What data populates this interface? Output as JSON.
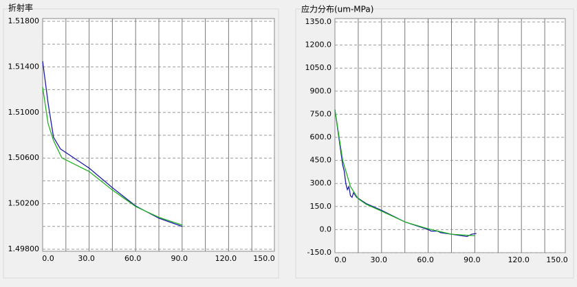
{
  "chart_data": [
    {
      "type": "line",
      "title": "折射率",
      "xlim": [
        0,
        150
      ],
      "xticks": [
        {
          "value": 0,
          "label": "0.0"
        },
        {
          "value": 30,
          "label": "30.0"
        },
        {
          "value": 60,
          "label": "60.0"
        },
        {
          "value": 90,
          "label": "90.0"
        },
        {
          "value": 120,
          "label": "120.0"
        },
        {
          "value": 150,
          "label": "150.0"
        }
      ],
      "x_minor_ticks": [
        15,
        45,
        75,
        105,
        135
      ],
      "ylim": [
        1.498,
        1.518
      ],
      "yticks": [
        {
          "value": 1.498,
          "label": "1.49800"
        },
        {
          "value": 1.502,
          "label": "1.50200"
        },
        {
          "value": 1.506,
          "label": "1.50600"
        },
        {
          "value": 1.51,
          "label": "1.51000"
        },
        {
          "value": 1.514,
          "label": "1.51400"
        },
        {
          "value": 1.518,
          "label": "1.51800"
        }
      ],
      "y_minor_ticks": [
        1.5,
        1.504,
        1.508,
        1.512,
        1.516
      ],
      "grid": true,
      "series": [
        {
          "color": "#1a1aa8",
          "x": [
            0,
            3.5,
            7,
            11.5,
            30,
            45,
            60,
            75,
            90
          ],
          "values": [
            1.5145,
            1.51083,
            1.50783,
            1.5068,
            1.50512,
            1.5034,
            1.5018,
            1.50072,
            1.5
          ]
        },
        {
          "color": "#20b020",
          "x": [
            0,
            3.5,
            7,
            12.4,
            30,
            45,
            60,
            75,
            90
          ],
          "values": [
            1.51222,
            1.50903,
            1.50753,
            1.50602,
            1.50482,
            1.5032,
            1.50175,
            1.5008,
            1.50012
          ]
        }
      ]
    },
    {
      "type": "line",
      "title": "应力分布(um-MPa)",
      "xlim": [
        0,
        150
      ],
      "xticks": [
        {
          "value": 0,
          "label": "0.0"
        },
        {
          "value": 30,
          "label": "30.0"
        },
        {
          "value": 60,
          "label": "60.0"
        },
        {
          "value": 90,
          "label": "90.0"
        },
        {
          "value": 120,
          "label": "120.0"
        },
        {
          "value": 150,
          "label": "150.0"
        }
      ],
      "x_minor_ticks": [
        15,
        45,
        75,
        105,
        135
      ],
      "ylim": [
        -150,
        1350
      ],
      "yticks": [
        {
          "value": -150,
          "label": "-150.0"
        },
        {
          "value": 0,
          "label": "0.0"
        },
        {
          "value": 150,
          "label": "150.0"
        },
        {
          "value": 300,
          "label": "300.0"
        },
        {
          "value": 450,
          "label": "450.0"
        },
        {
          "value": 600,
          "label": "600.0"
        },
        {
          "value": 750,
          "label": "750.0"
        },
        {
          "value": 900,
          "label": "900.0"
        },
        {
          "value": 1050,
          "label": "1050.0"
        },
        {
          "value": 1200,
          "label": "1200.0"
        },
        {
          "value": 1350,
          "label": "1350.0"
        }
      ],
      "y_minor_ticks": [],
      "grid": true,
      "series": [
        {
          "color": "#1a1aa8",
          "x": [
            0,
            5,
            6,
            7,
            8,
            9,
            10,
            11,
            12,
            14,
            20,
            30,
            45,
            60,
            62,
            66,
            68,
            75,
            85,
            88,
            91
          ],
          "values": [
            780,
            420,
            380,
            300,
            260,
            280,
            220,
            210,
            240,
            210,
            170,
            125,
            50,
            0,
            -10,
            -10,
            -20,
            -30,
            -45,
            -30,
            -25
          ]
        },
        {
          "color": "#20b020",
          "x": [
            0,
            5,
            10,
            15,
            20,
            30,
            45,
            60,
            75,
            90
          ],
          "values": [
            780,
            450,
            280,
            200,
            165,
            120,
            50,
            5,
            -30,
            -40
          ]
        }
      ]
    }
  ]
}
